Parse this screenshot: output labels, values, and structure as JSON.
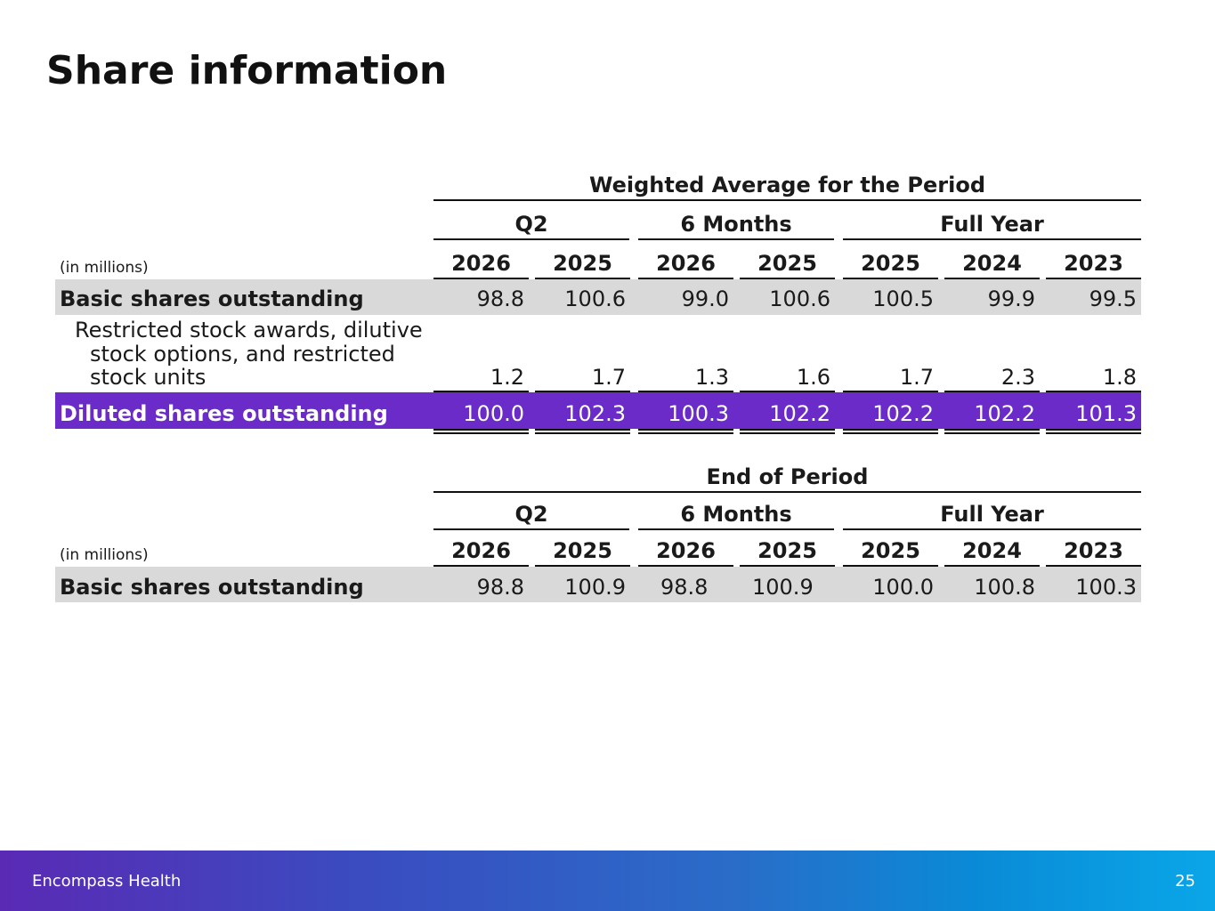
{
  "title": "Share information",
  "table1": {
    "header": "Weighted Average for the Period",
    "groups": [
      "Q2",
      "6 Months",
      "Full Year"
    ],
    "unit": "(in millions)",
    "years": [
      "2026",
      "2025",
      "2026",
      "2025",
      "2025",
      "2024",
      "2023"
    ],
    "rows": [
      {
        "label": "Basic shares outstanding",
        "values": [
          "98.8",
          "100.6",
          "99.0",
          "100.6",
          "100.5",
          "99.9",
          "99.5"
        ]
      },
      {
        "label_lines": [
          "Restricted stock awards, dilutive",
          "stock options, and restricted",
          "stock units"
        ],
        "values": [
          "1.2",
          "1.7",
          "1.3",
          "1.6",
          "1.7",
          "2.3",
          "1.8"
        ]
      },
      {
        "label": "Diluted shares outstanding",
        "values": [
          "100.0",
          "102.3",
          "100.3",
          "102.2",
          "102.2",
          "102.2",
          "101.3"
        ]
      }
    ]
  },
  "table2": {
    "header": "End of Period",
    "groups": [
      "Q2",
      "6 Months",
      "Full Year"
    ],
    "unit": "(in millions)",
    "years": [
      "2026",
      "2025",
      "2026",
      "2025",
      "2025",
      "2024",
      "2023"
    ],
    "rows": [
      {
        "label": "Basic shares outstanding",
        "values": [
          "98.8",
          "100.9",
          "98.8",
          "100.9",
          "100.0",
          "100.8",
          "100.3"
        ]
      }
    ]
  },
  "footer": {
    "company": "Encompass Health",
    "page": "25"
  },
  "colors": {
    "band_gray": "#d9d9d9",
    "band_purple": "#6a2bc8",
    "text": "#1a1a1a"
  }
}
